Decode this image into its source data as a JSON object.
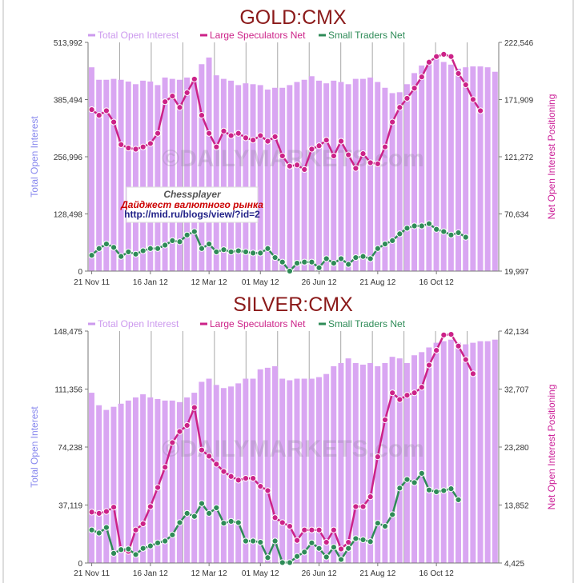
{
  "colors": {
    "title": "#8b1a1a",
    "open_interest_bar": "#d9a6f2",
    "open_interest_legend": "#cc99ee",
    "large_speculators": "#cc2288",
    "small_traders": "#2e8b57",
    "left_axis_label": "#8888ee",
    "right_axis_label": "#cc2299"
  },
  "watermark": "©DAILYMARKETS.com",
  "stamp": {
    "name": "Chessplayer",
    "subtitle": "Дайджест валютного рынка",
    "url": "http://mid.ru/blogs/view/?id=2"
  },
  "chart_data": [
    {
      "type": "bar",
      "title": "GOLD:CMX",
      "xlabel": "",
      "ylabel": "Total Open Interest",
      "y2label": "Net Open Interest Positioning",
      "x_tick_labels": [
        "21 Nov 11",
        "16 Jan 12",
        "12 Mar 12",
        "01 May 12",
        "26 Jun 12",
        "21 Aug 12",
        "16 Oct 12"
      ],
      "x_tick_index": [
        0,
        8,
        16,
        23,
        31,
        39,
        47
      ],
      "ylim": [
        0,
        513992
      ],
      "y_ticks": [
        "0",
        "128,498",
        "256,996",
        "385,494",
        "513,992"
      ],
      "y2lim": [
        19997,
        222546
      ],
      "y2_ticks": [
        "19,997",
        "70,634",
        "121,272",
        "171,909",
        "222,546"
      ],
      "legend": [
        "Total Open Interest",
        "Large Speculators Net",
        "Small Traders Net"
      ],
      "series": [
        {
          "name": "Total Open Interest",
          "type": "bar",
          "axis": "left",
          "values": [
            458000,
            430000,
            430000,
            432000,
            430000,
            426000,
            420000,
            428000,
            426000,
            418000,
            435000,
            432000,
            430000,
            435000,
            430000,
            465000,
            480000,
            440000,
            432000,
            428000,
            418000,
            422000,
            420000,
            418000,
            408000,
            412000,
            412000,
            418000,
            425000,
            430000,
            438000,
            428000,
            422000,
            428000,
            425000,
            420000,
            432000,
            432000,
            435000,
            425000,
            412000,
            400000,
            402000,
            420000,
            445000,
            462000,
            468000,
            478000,
            470000,
            464000,
            455000,
            458000,
            460000,
            460000,
            458000,
            448000
          ]
        },
        {
          "name": "Large Speculators Net",
          "type": "line",
          "axis": "right",
          "values": [
            163000,
            158000,
            162000,
            152000,
            132000,
            129000,
            128000,
            130000,
            133000,
            142000,
            170000,
            175000,
            165000,
            178000,
            190000,
            158000,
            142000,
            130000,
            144000,
            140000,
            142000,
            138000,
            136000,
            140000,
            135000,
            139000,
            122000,
            113000,
            114000,
            110000,
            128000,
            131000,
            136000,
            122000,
            135000,
            123000,
            111000,
            124000,
            116000,
            115000,
            130000,
            152000,
            165000,
            173000,
            182000,
            192000,
            205000,
            210000,
            212000,
            210000,
            195000,
            185000,
            172000,
            162000
          ]
        },
        {
          "name": "Small Traders Net",
          "type": "line",
          "axis": "right",
          "values": [
            34000,
            40000,
            44000,
            41000,
            33000,
            37000,
            35000,
            38000,
            40000,
            40000,
            43000,
            47000,
            46000,
            52000,
            55000,
            40000,
            44000,
            37000,
            39000,
            37000,
            38000,
            37000,
            36000,
            36000,
            40000,
            32000,
            28000,
            20000,
            27000,
            28000,
            28000,
            23000,
            31000,
            27000,
            31000,
            26000,
            32000,
            33000,
            31000,
            40000,
            44000,
            47000,
            53000,
            58000,
            60000,
            60000,
            62000,
            57000,
            55000,
            52000,
            54000,
            50000
          ]
        }
      ]
    },
    {
      "type": "bar",
      "title": "SILVER:CMX",
      "xlabel": "",
      "ylabel": "Total Open Interest",
      "y2label": "Net Open Interest Positioning",
      "x_tick_labels": [
        "21 Nov 11",
        "16 Jan 12",
        "12 Mar 12",
        "01 May 12",
        "26 Jun 12",
        "21 Aug 12",
        "16 Oct 12"
      ],
      "x_tick_index": [
        0,
        8,
        16,
        23,
        31,
        39,
        47
      ],
      "ylim": [
        0,
        148475
      ],
      "y_ticks": [
        "0",
        "37,119",
        "74,238",
        "111,356",
        "148,475"
      ],
      "y2lim": [
        4425,
        42134
      ],
      "y2_ticks": [
        "4,425",
        "13,852",
        "23,280",
        "32,707",
        "42,134"
      ],
      "legend": [
        "Total Open Interest",
        "Large Speculators Net",
        "Small Traders Net"
      ],
      "series": [
        {
          "name": "Total Open Interest",
          "type": "bar",
          "axis": "left",
          "values": [
            109000,
            101000,
            98000,
            100000,
            102000,
            104000,
            106000,
            108000,
            106000,
            105000,
            104000,
            104000,
            103000,
            106000,
            109000,
            116000,
            118000,
            114000,
            112000,
            113000,
            115000,
            118000,
            118000,
            124000,
            125000,
            126000,
            118000,
            117000,
            118000,
            118000,
            118000,
            119000,
            121000,
            126000,
            128000,
            131000,
            128000,
            127000,
            128000,
            126000,
            128000,
            132000,
            131000,
            128000,
            133000,
            135000,
            138000,
            141000,
            142000,
            143000,
            141000,
            140000,
            141000,
            142000,
            142000,
            143000
          ]
        },
        {
          "name": "Large Speculators Net",
          "type": "line",
          "axis": "right",
          "values": [
            12700,
            12500,
            12800,
            13500,
            6600,
            6300,
            9800,
            10800,
            13600,
            16700,
            20000,
            24000,
            25800,
            26800,
            29700,
            22800,
            21800,
            20500,
            19300,
            18500,
            17900,
            18200,
            18200,
            16900,
            16200,
            11800,
            11000,
            10400,
            8100,
            9800,
            9800,
            9800,
            7800,
            9800,
            6700,
            7800,
            13600,
            13600,
            15200,
            21700,
            27700,
            32100,
            31000,
            31700,
            32100,
            33000,
            36600,
            39000,
            41500,
            41600,
            39700,
            37500,
            35200
          ]
        },
        {
          "name": "Small Traders Net",
          "type": "line",
          "axis": "right",
          "values": [
            9800,
            9300,
            10200,
            6000,
            6600,
            6700,
            5800,
            6800,
            7200,
            7700,
            8000,
            9000,
            11000,
            12500,
            12000,
            14100,
            12500,
            13400,
            10900,
            11200,
            11000,
            8000,
            8000,
            7800,
            5300,
            8000,
            4500,
            4500,
            5500,
            6200,
            7700,
            6800,
            5400,
            7000,
            5000,
            6800,
            8400,
            8200,
            7900,
            10900,
            10400,
            12300,
            16600,
            18000,
            17500,
            19000,
            16300,
            16000,
            16200,
            16500,
            14700
          ]
        }
      ]
    }
  ]
}
